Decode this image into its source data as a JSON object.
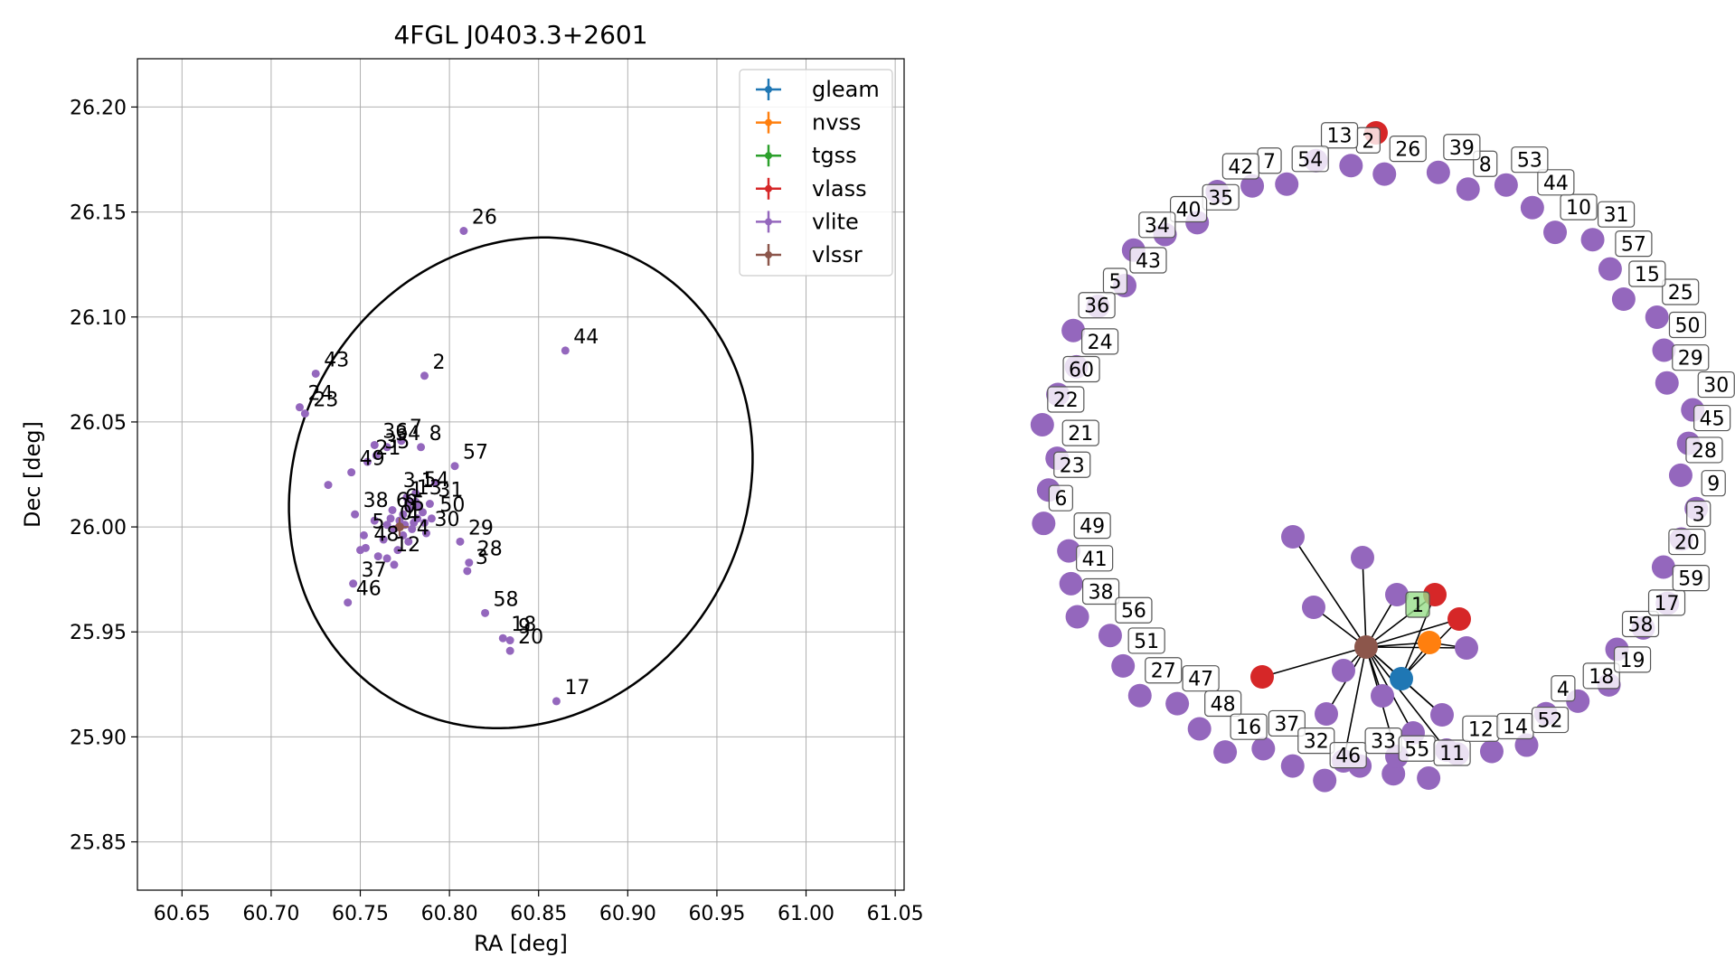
{
  "chart_data": [
    {
      "type": "scatter",
      "title": "4FGL J0403.3+2601",
      "xlabel": "RA [deg]",
      "ylabel": "Dec [deg]",
      "xlim": [
        60.625,
        61.055
      ],
      "ylim": [
        25.827,
        26.223
      ],
      "xticks": [
        "60.65",
        "60.70",
        "60.75",
        "60.80",
        "60.85",
        "60.90",
        "60.95",
        "61.00",
        "61.05"
      ],
      "yticks": [
        "25.85",
        "25.90",
        "25.95",
        "26.00",
        "26.05",
        "26.10",
        "26.15",
        "26.20"
      ],
      "grid": true,
      "legend_position": "top-right",
      "legend": [
        {
          "name": "gleam",
          "color": "#1f77b4"
        },
        {
          "name": "nvss",
          "color": "#ff7f0e"
        },
        {
          "name": "tgss",
          "color": "#2ca02c"
        },
        {
          "name": "vlass",
          "color": "#d62728"
        },
        {
          "name": "vlite",
          "color": "#9467bd"
        },
        {
          "name": "vlssr",
          "color": "#8c564b"
        }
      ],
      "ellipse": {
        "center": [
          60.84,
          26.021
        ],
        "ra_semi_axis": 0.126,
        "dec_semi_axis": 0.12,
        "angle_deg": 30,
        "color": "#000000"
      },
      "labeled_points": [
        {
          "label": "26",
          "ra": 60.808,
          "dec": 26.141
        },
        {
          "label": "44",
          "ra": 60.865,
          "dec": 26.084
        },
        {
          "label": "43",
          "ra": 60.725,
          "dec": 26.073
        },
        {
          "label": "2",
          "ra": 60.786,
          "dec": 26.072
        },
        {
          "label": "24",
          "ra": 60.716,
          "dec": 26.057
        },
        {
          "label": "23",
          "ra": 60.719,
          "dec": 26.054
        },
        {
          "label": "36",
          "ra": 60.758,
          "dec": 26.039
        },
        {
          "label": "34",
          "ra": 60.765,
          "dec": 26.038
        },
        {
          "label": "7",
          "ra": 60.773,
          "dec": 26.041
        },
        {
          "label": "35",
          "ra": 60.759,
          "dec": 26.034
        },
        {
          "label": "8",
          "ra": 60.784,
          "dec": 26.038
        },
        {
          "label": "21",
          "ra": 60.754,
          "dec": 26.031
        },
        {
          "label": "57",
          "ra": 60.803,
          "dec": 26.029
        },
        {
          "label": "49",
          "ra": 60.745,
          "dec": 26.026
        },
        {
          "label": "54",
          "ra": 60.781,
          "dec": 26.016
        },
        {
          "label": "31",
          "ra": 60.789,
          "dec": 26.011
        },
        {
          "label": "13",
          "ra": 60.777,
          "dec": 26.012
        },
        {
          "label": "38",
          "ra": 60.747,
          "dec": 26.006
        },
        {
          "label": "50",
          "ra": 60.79,
          "dec": 26.004
        },
        {
          "label": "30",
          "ra": 60.787,
          "dec": 25.997
        },
        {
          "label": "5",
          "ra": 60.752,
          "dec": 25.996
        },
        {
          "label": "29",
          "ra": 60.806,
          "dec": 25.993
        },
        {
          "label": "48",
          "ra": 60.753,
          "dec": 25.99
        },
        {
          "label": "4",
          "ra": 60.777,
          "dec": 25.993
        },
        {
          "label": "12",
          "ra": 60.765,
          "dec": 25.985
        },
        {
          "label": "28",
          "ra": 60.811,
          "dec": 25.983
        },
        {
          "label": "3",
          "ra": 60.81,
          "dec": 25.979
        },
        {
          "label": "37",
          "ra": 60.746,
          "dec": 25.973
        },
        {
          "label": "46",
          "ra": 60.743,
          "dec": 25.964
        },
        {
          "label": "58",
          "ra": 60.82,
          "dec": 25.959
        },
        {
          "label": "18",
          "ra": 60.83,
          "dec": 25.947
        },
        {
          "label": "9",
          "ra": 60.834,
          "dec": 25.946
        },
        {
          "label": "20",
          "ra": 60.834,
          "dec": 25.941
        },
        {
          "label": "17",
          "ra": 60.86,
          "dec": 25.917
        }
      ],
      "extra_points": [
        {
          "ra": 60.732,
          "dec": 26.02
        },
        {
          "ra": 60.792,
          "dec": 26.021
        },
        {
          "ra": 60.75,
          "dec": 25.989
        },
        {
          "ra": 60.76,
          "dec": 25.986
        },
        {
          "ra": 60.769,
          "dec": 25.982
        },
        {
          "ra": 60.763,
          "dec": 25.994
        },
        {
          "ra": 60.771,
          "dec": 25.989
        },
        {
          "ra": 60.768,
          "dec": 26.008
        },
        {
          "ra": 60.774,
          "dec": 26.006
        },
        {
          "ra": 60.78,
          "dec": 26.002
        },
        {
          "ra": 60.785,
          "dec": 26.007
        },
        {
          "ra": 60.783,
          "dec": 26.01
        },
        {
          "ra": 60.779,
          "dec": 25.999
        },
        {
          "ra": 60.776,
          "dec": 26.014
        },
        {
          "ra": 60.772,
          "dec": 26.003
        },
        {
          "ra": 60.786,
          "dec": 26.002
        },
        {
          "ra": 60.782,
          "dec": 26.004
        },
        {
          "ra": 60.777,
          "dec": 26.009
        },
        {
          "ra": 60.769,
          "dec": 25.999
        },
        {
          "ra": 60.765,
          "dec": 26.001
        },
        {
          "ra": 60.758,
          "dec": 26.003
        },
        {
          "ra": 60.767,
          "dec": 26.004
        },
        {
          "ra": 60.774,
          "dec": 25.996
        },
        {
          "ra": 60.781,
          "dec": 26.012
        },
        {
          "ra": 60.775,
          "dec": 26.001
        }
      ],
      "center_labels": [
        "6",
        "0",
        "1",
        "0",
        "5"
      ],
      "center_glyph_labels": [
        "1",
        "3",
        "6",
        "4",
        "1"
      ],
      "vlssr_marker": {
        "ra": 60.772,
        "dec": 26.0
      }
    },
    {
      "type": "network",
      "nodes": [
        {
          "label": "26",
          "color": "#9467bd"
        },
        {
          "label": "2",
          "color": "#9467bd"
        },
        {
          "label": "13",
          "color": "#9467bd"
        },
        {
          "label": "54",
          "color": "#9467bd"
        },
        {
          "label": "7",
          "color": "#9467bd"
        },
        {
          "label": "42",
          "color": "#9467bd"
        },
        {
          "label": "35",
          "color": "#9467bd"
        },
        {
          "label": "40",
          "color": "#9467bd"
        },
        {
          "label": "34",
          "color": "#9467bd"
        },
        {
          "label": "43",
          "color": "#9467bd"
        },
        {
          "label": "5",
          "color": "#9467bd"
        },
        {
          "label": "36",
          "color": "#9467bd"
        },
        {
          "label": "24",
          "color": "#9467bd"
        },
        {
          "label": "60",
          "color": "#9467bd"
        },
        {
          "label": "22",
          "color": "#9467bd"
        },
        {
          "label": "21",
          "color": "#9467bd"
        },
        {
          "label": "23",
          "color": "#9467bd"
        },
        {
          "label": "6",
          "color": "#9467bd"
        },
        {
          "label": "49",
          "color": "#9467bd"
        },
        {
          "label": "41",
          "color": "#9467bd"
        },
        {
          "label": "38",
          "color": "#9467bd"
        },
        {
          "label": "56",
          "color": "#9467bd"
        },
        {
          "label": "51",
          "color": "#9467bd"
        },
        {
          "label": "27",
          "color": "#9467bd"
        },
        {
          "label": "47",
          "color": "#9467bd"
        },
        {
          "label": "48",
          "color": "#9467bd"
        },
        {
          "label": "16",
          "color": "#9467bd"
        },
        {
          "label": "37",
          "color": "#9467bd"
        },
        {
          "label": "32",
          "color": "#9467bd"
        },
        {
          "label": "46",
          "color": "#9467bd"
        },
        {
          "label": "33",
          "color": "#9467bd"
        },
        {
          "label": "55",
          "color": "#9467bd"
        },
        {
          "label": "11",
          "color": "#9467bd"
        },
        {
          "label": "12",
          "color": "#9467bd"
        },
        {
          "label": "14",
          "color": "#9467bd"
        },
        {
          "label": "52",
          "color": "#9467bd"
        },
        {
          "label": "4",
          "color": "#9467bd"
        },
        {
          "label": "18",
          "color": "#9467bd"
        },
        {
          "label": "19",
          "color": "#9467bd"
        },
        {
          "label": "58",
          "color": "#9467bd"
        },
        {
          "label": "17",
          "color": "#9467bd"
        },
        {
          "label": "59",
          "color": "#9467bd"
        },
        {
          "label": "20",
          "color": "#9467bd"
        },
        {
          "label": "3",
          "color": "#9467bd"
        },
        {
          "label": "9",
          "color": "#9467bd"
        },
        {
          "label": "28",
          "color": "#9467bd"
        },
        {
          "label": "45",
          "color": "#9467bd"
        },
        {
          "label": "30",
          "color": "#9467bd"
        },
        {
          "label": "29",
          "color": "#9467bd"
        },
        {
          "label": "50",
          "color": "#9467bd"
        },
        {
          "label": "25",
          "color": "#9467bd"
        },
        {
          "label": "15",
          "color": "#9467bd"
        },
        {
          "label": "57",
          "color": "#9467bd"
        },
        {
          "label": "31",
          "color": "#9467bd"
        },
        {
          "label": "10",
          "color": "#9467bd"
        },
        {
          "label": "44",
          "color": "#9467bd"
        },
        {
          "label": "53",
          "color": "#9467bd"
        },
        {
          "label": "8",
          "color": "#9467bd"
        },
        {
          "label": "39",
          "color": "#9467bd"
        },
        {
          "label": "1",
          "color": "#98df8a"
        }
      ],
      "cluster_nodes": [
        {
          "color": "#8c564b"
        },
        {
          "color": "#1f77b4"
        },
        {
          "color": "#ff7f0e"
        },
        {
          "color": "#d62728"
        },
        {
          "color": "#d62728"
        },
        {
          "color": "#d62728"
        },
        {
          "color": "#d62728"
        },
        {
          "color": "#9467bd"
        },
        {
          "color": "#9467bd"
        },
        {
          "color": "#9467bd"
        },
        {
          "color": "#9467bd"
        },
        {
          "color": "#9467bd"
        },
        {
          "color": "#9467bd"
        },
        {
          "color": "#9467bd"
        },
        {
          "color": "#9467bd"
        },
        {
          "color": "#9467bd"
        },
        {
          "color": "#9467bd"
        },
        {
          "color": "#9467bd"
        },
        {
          "color": "#9467bd"
        },
        {
          "color": "#9467bd"
        }
      ]
    }
  ]
}
